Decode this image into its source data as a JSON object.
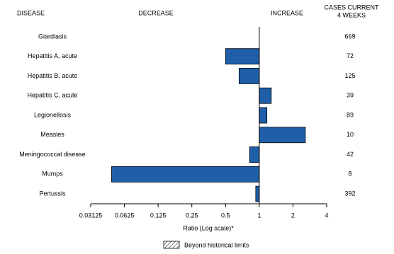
{
  "chart_data": {
    "type": "bar",
    "orientation": "horizontal",
    "log_scale": true,
    "headers": {
      "category": "DISEASE",
      "decrease": "DECREASE",
      "increase": "INCREASE",
      "cases": [
        "CASES CURRENT",
        "4 WEEKS"
      ]
    },
    "categories": [
      "Giardiasis",
      "Hepatitis A, acute",
      "Hepatitis B, acute",
      "Hepatitis C, acute",
      "Legionellosis",
      "Measles",
      "Meningococcal disease",
      "Mumps",
      "Pertussis"
    ],
    "values": [
      1,
      0.5,
      0.66,
      1.28,
      1.17,
      2.58,
      0.82,
      0.048,
      0.93
    ],
    "cases": [
      669,
      72,
      125,
      39,
      89,
      10,
      42,
      8,
      392
    ],
    "color": "#1f5faa",
    "xlim": [
      0.03125,
      4
    ],
    "xticks": [
      0.03125,
      0.0625,
      0.125,
      0.25,
      0.5,
      1,
      2,
      4
    ],
    "xlabel": "Ratio (Log scale)*",
    "legend": "Beyond historical limits"
  }
}
